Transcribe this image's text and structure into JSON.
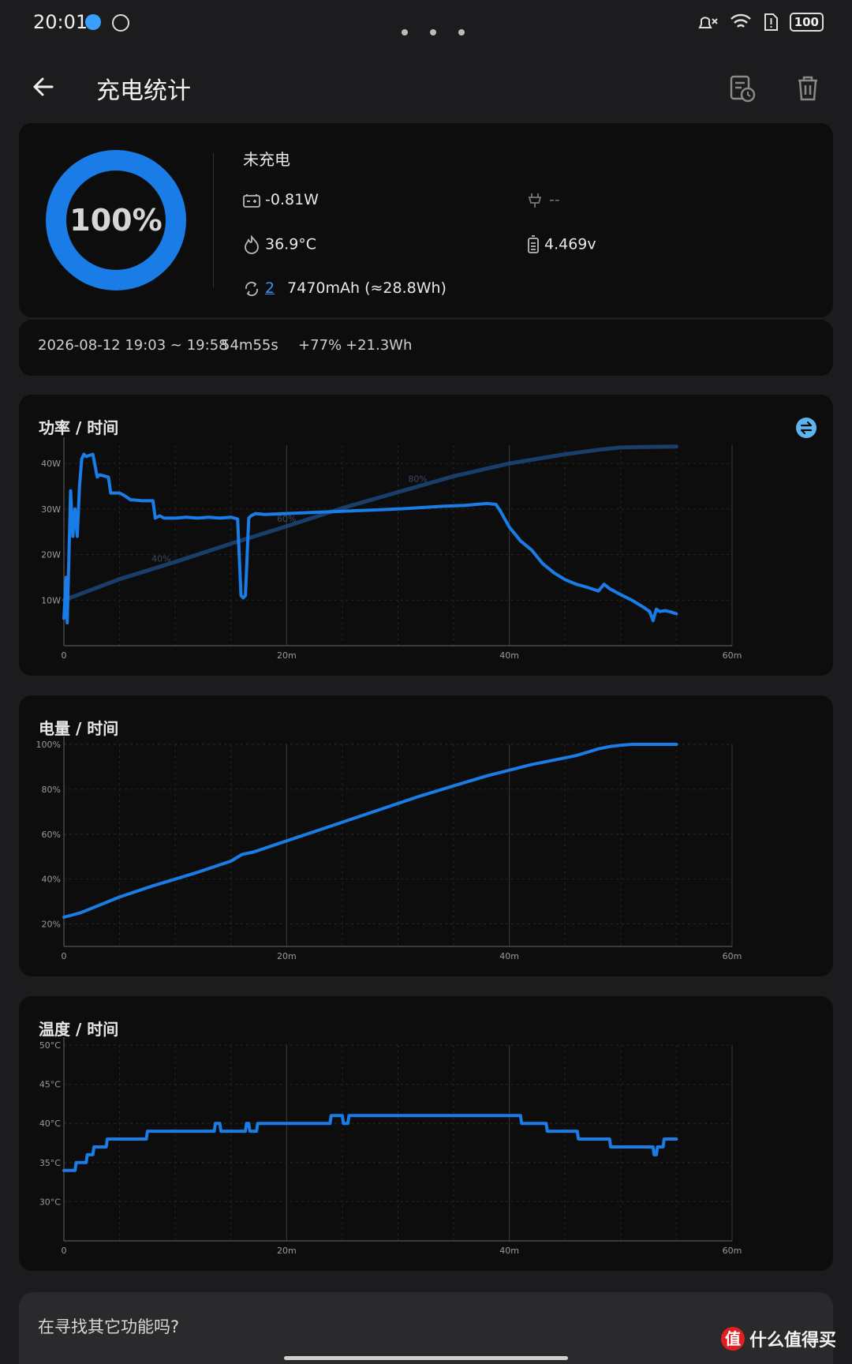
{
  "status_bar": {
    "time": "20:01",
    "battery": "100"
  },
  "header": {
    "title": "充电统计"
  },
  "battery_card": {
    "percent": "100%",
    "state": "未充电",
    "power": "-0.81W",
    "input": "--",
    "temperature": "36.9°C",
    "voltage": "4.469v",
    "cycle_count": "2",
    "capacity": "7470mAh (≈28.8Wh)"
  },
  "session": {
    "date_range": "2026-08-12  19:03 ~ 19:58",
    "duration": "54m55s",
    "percent_gain": "+77%",
    "energy_gain": "+21.3Wh"
  },
  "chart_data": [
    {
      "type": "line",
      "title": "功率 / 时间",
      "x_ticks": [
        "0",
        "20m",
        "40m",
        "60m"
      ],
      "xlim": [
        0,
        60
      ],
      "y_ticks": [
        "10W",
        "20W",
        "30W",
        "40W"
      ],
      "ylim": [
        0,
        44
      ],
      "series": [
        {
          "color": "#1a7ce6",
          "x": [
            0,
            0.2,
            0.3,
            0.6,
            0.8,
            1.0,
            1.2,
            1.4,
            1.6,
            1.8,
            2.0,
            2.6,
            3.0,
            3.2,
            4.0,
            4.2,
            5.0,
            5.4,
            6.0,
            6.2,
            7.0,
            8.0,
            8.2,
            8.6,
            9.0,
            10,
            11,
            12,
            13,
            14,
            15,
            15.6,
            15.9,
            16.1,
            16.3,
            16.6,
            16.8,
            17.2,
            18,
            20,
            22,
            24,
            26,
            28,
            30,
            32,
            34,
            36,
            37,
            38,
            38.8,
            39.2,
            40,
            41,
            42,
            43,
            44,
            45,
            46,
            47,
            48,
            48.5,
            49,
            50,
            51,
            52,
            52.6,
            52.9,
            53.2,
            53.5,
            54,
            54.5,
            55
          ],
          "y": [
            6,
            15,
            5,
            34,
            24,
            30,
            24,
            35,
            41,
            42,
            41.5,
            42,
            37,
            37.5,
            37,
            33.5,
            33.5,
            33,
            32,
            32,
            31.8,
            31.8,
            28,
            28.5,
            28,
            28,
            28.2,
            28,
            28.2,
            28,
            28.2,
            27.8,
            11,
            10.5,
            11,
            28,
            28.5,
            29,
            28.8,
            29,
            29.2,
            29.4,
            29.6,
            29.8,
            30,
            30.3,
            30.6,
            30.8,
            31,
            31.2,
            31,
            29.5,
            26,
            23,
            21,
            18,
            16,
            14.5,
            13.5,
            12.8,
            12,
            13.5,
            12.5,
            11.2,
            10,
            8.5,
            7.5,
            5.5,
            8,
            7.5,
            7.7,
            7.4,
            7
          ]
        },
        {
          "color": "#1e4f8a",
          "labels": [
            "40%",
            "60%",
            "80%"
          ],
          "x": [
            0,
            5,
            10,
            15,
            20,
            25,
            30,
            35,
            40,
            45,
            48,
            50,
            52,
            55
          ],
          "y": [
            10,
            14.6,
            18.4,
            22.4,
            26.2,
            30.2,
            33.7,
            37.2,
            40,
            42,
            43,
            43.5,
            43.6,
            43.7
          ]
        }
      ]
    },
    {
      "type": "line",
      "title": "电量 / 时间",
      "x_ticks": [
        "0",
        "20m",
        "40m",
        "60m"
      ],
      "xlim": [
        0,
        60
      ],
      "y_ticks": [
        "20%",
        "40%",
        "60%",
        "80%",
        "100%"
      ],
      "ylim": [
        10,
        100
      ],
      "series": [
        {
          "color": "#1a7ce6",
          "x": [
            0,
            1.5,
            3,
            5,
            8,
            10,
            12,
            15,
            16,
            17,
            20,
            23,
            26,
            29,
            32,
            35,
            38,
            40,
            42,
            44,
            46,
            47,
            48,
            49,
            50,
            51,
            55
          ],
          "y": [
            23,
            25,
            28,
            32,
            37,
            40,
            43,
            48,
            51,
            52,
            57,
            62,
            67,
            72,
            77,
            81.5,
            86,
            88.5,
            91,
            93,
            95,
            96.5,
            98,
            99,
            99.6,
            100,
            100
          ]
        }
      ]
    },
    {
      "type": "line",
      "title": "温度 / 时间",
      "x_ticks": [
        "0",
        "20m",
        "40m",
        "60m"
      ],
      "xlim": [
        0,
        60
      ],
      "y_ticks": [
        "30°C",
        "35°C",
        "40°C",
        "45°C",
        "50°C"
      ],
      "ylim": [
        25,
        50
      ],
      "series": [
        {
          "color": "#1a7ce6",
          "x": [
            0,
            1.0,
            1.1,
            2.0,
            2.1,
            2.6,
            2.7,
            3.8,
            3.9,
            7.4,
            7.5,
            13.5,
            13.6,
            14.0,
            14.1,
            16.3,
            16.4,
            16.6,
            16.7,
            17.3,
            17.4,
            23.9,
            24.0,
            25.0,
            25.1,
            25.5,
            25.6,
            41.0,
            41.1,
            43.3,
            43.4,
            46.1,
            46.2,
            49.0,
            49.1,
            52.9,
            53.0,
            53.2,
            53.3,
            53.8,
            53.9,
            55
          ],
          "y": [
            34,
            34,
            35,
            35,
            36,
            36,
            37,
            37,
            38,
            38,
            39,
            39,
            40,
            40,
            39,
            39,
            40,
            40,
            39,
            39,
            40,
            40,
            41,
            41,
            40,
            40,
            41,
            41,
            40,
            40,
            39,
            39,
            38,
            38,
            37,
            37,
            36,
            36,
            37,
            37,
            38,
            38
          ]
        }
      ]
    }
  ],
  "footer": {
    "prompt": "在寻找其它功能吗?",
    "watermark": "什么值得买",
    "watermark_logo": "值"
  }
}
